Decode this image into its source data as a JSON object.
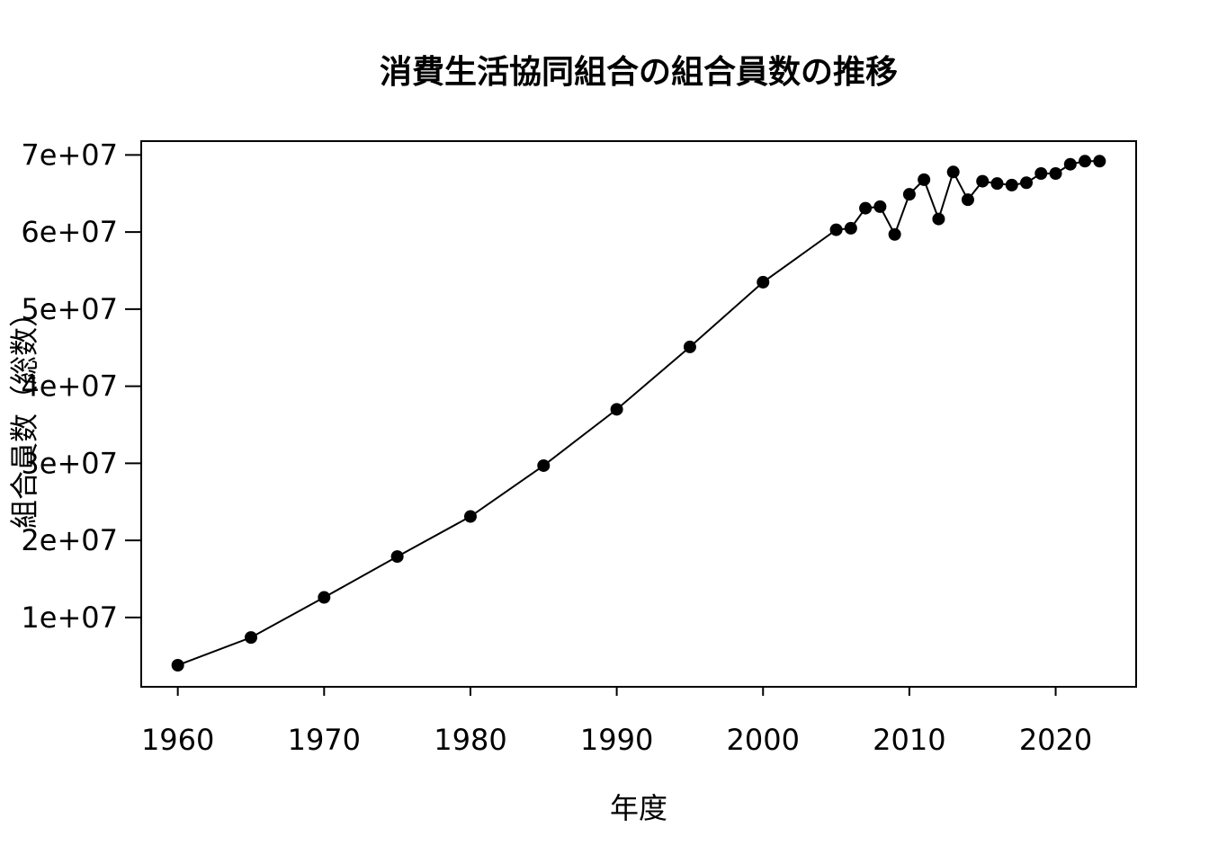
{
  "chart_data": {
    "type": "line",
    "title": "消費生活協同組合の組合員数の推移",
    "xlabel": "年度",
    "ylabel": "組合員数（総数）",
    "x_ticks": [
      "1960",
      "1970",
      "1980",
      "1990",
      "2000",
      "2010",
      "2020"
    ],
    "y_ticks": [
      "1e+07",
      "2e+07",
      "3e+07",
      "4e+07",
      "5e+07",
      "6e+07",
      "7e+07"
    ],
    "xlim": [
      1957.5,
      2025.5
    ],
    "ylim": [
      1000000,
      71800000
    ],
    "grid": false,
    "series": [
      {
        "x": [
          1960,
          1965,
          1970,
          1975,
          1980,
          1985,
          1990,
          1995,
          2000,
          2005,
          2006,
          2007,
          2008,
          2009,
          2010,
          2011,
          2012,
          2013,
          2014,
          2015,
          2016,
          2017,
          2018,
          2019,
          2020,
          2021,
          2022,
          2023
        ],
        "values": [
          3800000,
          7400000,
          12600000,
          17900000,
          23100000,
          29700000,
          37000000,
          45100000,
          53500000,
          60300000,
          60500000,
          63100000,
          63300000,
          59700000,
          64900000,
          66800000,
          61700000,
          67800000,
          64200000,
          66600000,
          66300000,
          66100000,
          66400000,
          67600000,
          67600000,
          68800000,
          69200000,
          69200000
        ]
      }
    ]
  }
}
